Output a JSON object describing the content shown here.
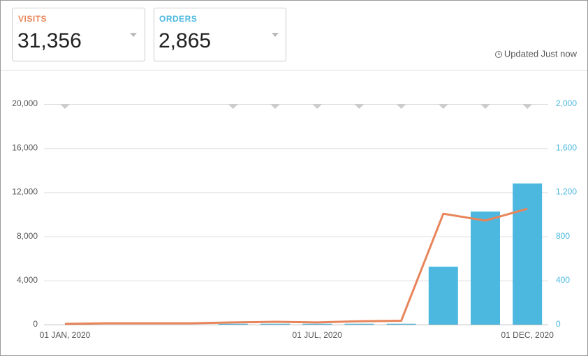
{
  "cards": [
    {
      "value": "31,356"
    },
    {
      "value": "2,865"
    }
  ],
  "updated": "Updated Just now",
  "chart_data": {
    "type": "combo",
    "categories": [
      "01 JAN, 2020",
      null,
      null,
      null,
      null,
      null,
      "01 JUL, 2020",
      null,
      null,
      null,
      null,
      "01 DEC, 2020"
    ],
    "series": [
      {
        "name": "VISITS",
        "type": "line",
        "axis": "y",
        "color": "#e8855a",
        "values": [
          60,
          120,
          120,
          120,
          200,
          250,
          200,
          300,
          350,
          10050,
          9430,
          10500
        ]
      },
      {
        "name": "ORDERS",
        "type": "bar",
        "axis": "y2",
        "color": "#4cb8e0",
        "values": [
          0,
          0,
          0,
          0,
          8,
          8,
          8,
          8,
          8,
          525,
          1025,
          1280
        ]
      }
    ],
    "ylim": [
      0,
      20000
    ],
    "yticks": [
      0,
      {
        "value": 4000,
        "label": "4,000"
      },
      {
        "value": 8000,
        "label": "8,000"
      },
      {
        "value": 12000,
        "label": "12,000"
      },
      {
        "value": 16000,
        "label": "16,000"
      },
      {
        "value": 20000,
        "label": "20,000"
      }
    ],
    "y2lim": [
      0,
      2000
    ],
    "y2ticks": [
      0,
      400,
      800,
      {
        "value": 1200,
        "label": "1,200"
      },
      {
        "value": 1600,
        "label": "1,600"
      },
      {
        "value": 2000,
        "label": "2,000"
      }
    ],
    "grid": true
  }
}
